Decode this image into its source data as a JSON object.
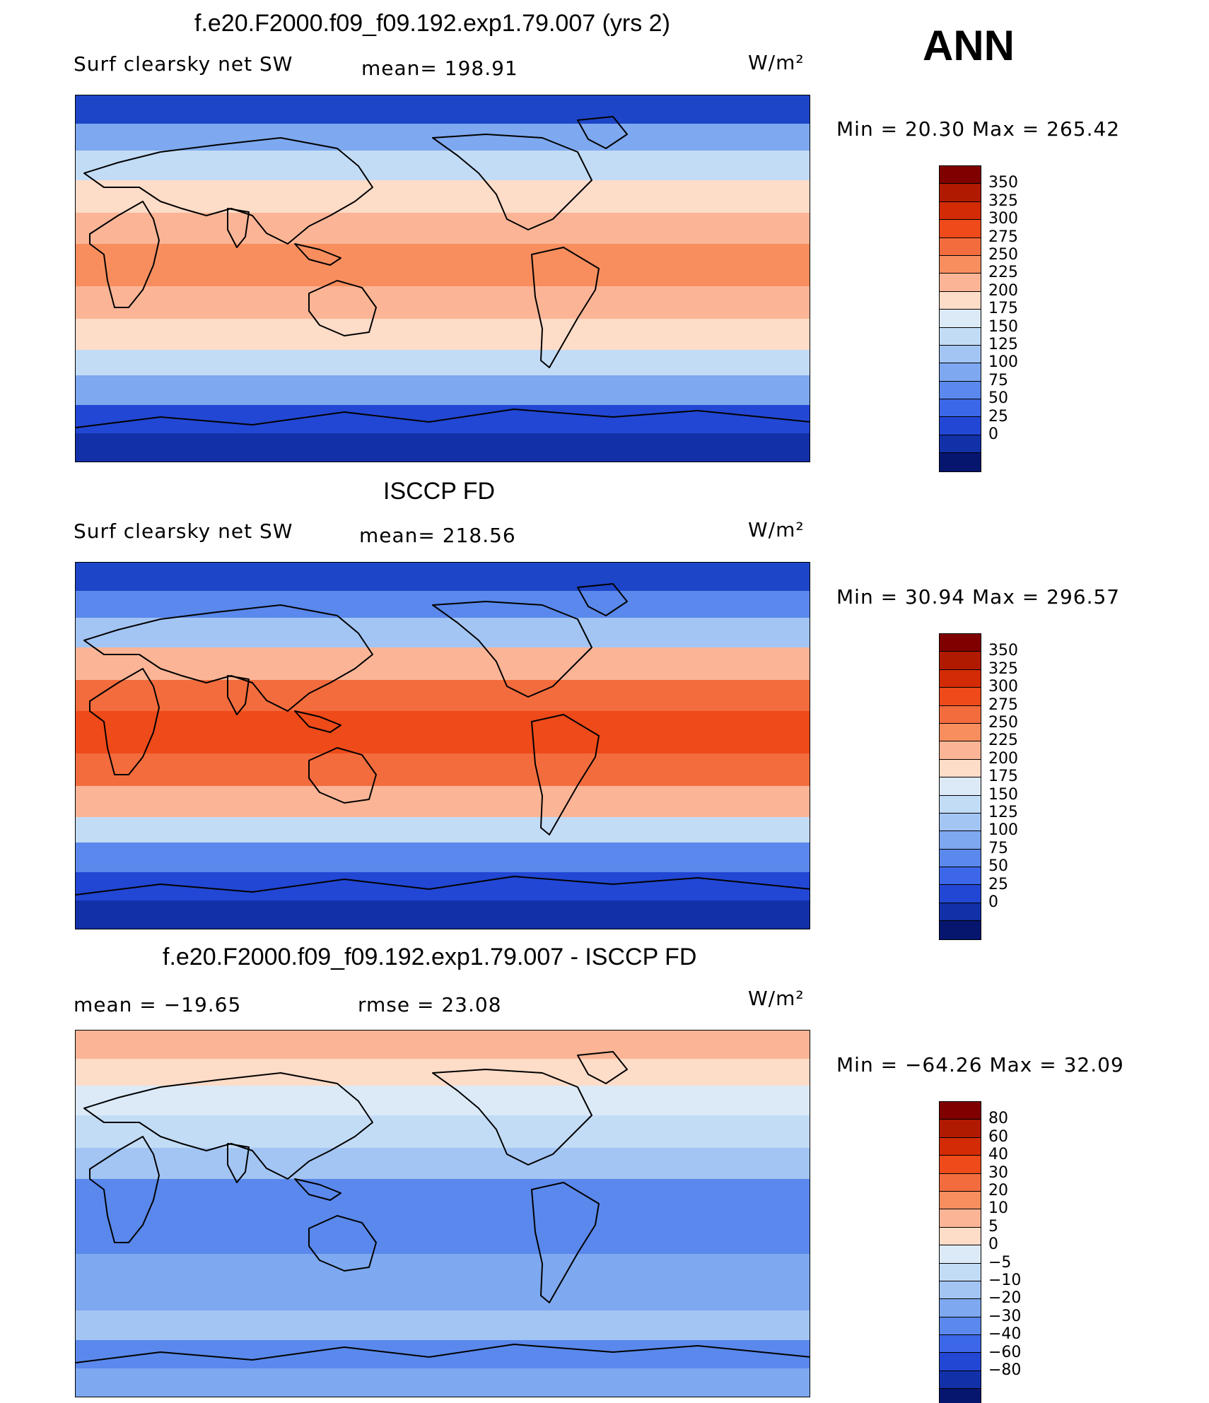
{
  "season": "ANN",
  "units_label": "W/m²",
  "panels": [
    {
      "title": "f.e20.F2000.f09_f09.192.exp1.79.007 (yrs 2)",
      "left_label": "Surf clearsky net SW",
      "stat_label": "mean=  198.91",
      "units": "W/m²",
      "minmax": "Min =   20.30 Max  =  265.42",
      "colorbar_ticks": [
        "350",
        "325",
        "300",
        "275",
        "250",
        "225",
        "200",
        "175",
        "150",
        "125",
        "100",
        "75",
        "50",
        "25",
        "0"
      ],
      "colorbar_colors": [
        "#800000",
        "#b01a00",
        "#d22b05",
        "#ee4a1a",
        "#f36c3d",
        "#f88e5e",
        "#fbb596",
        "#fddcc8",
        "#dceaf8",
        "#c3dcf6",
        "#a3c5f3",
        "#7ea8ef",
        "#5a88ec",
        "#3c67e8",
        "#2247d4",
        "#1230a8",
        "#06156e"
      ],
      "map_zones": [
        {
          "label": "polar_n",
          "color": "#1d45c8"
        },
        {
          "label": "subpolar_n",
          "color": "#7ea8ef"
        },
        {
          "label": "midlat_n",
          "color": "#c3dcf6"
        },
        {
          "label": "subtrop_n",
          "color": "#fddcc8"
        },
        {
          "label": "trop_n",
          "color": "#fbb596"
        },
        {
          "label": "tropics",
          "color": "#f88e5e"
        },
        {
          "label": "trop_s",
          "color": "#fbb596"
        },
        {
          "label": "subtrop_s",
          "color": "#fddcc8"
        },
        {
          "label": "midlat_s",
          "color": "#c3dcf6"
        },
        {
          "label": "subpolar_s",
          "color": "#7ea8ef"
        },
        {
          "label": "polar_s",
          "color": "#2247d4"
        },
        {
          "label": "antarctica",
          "color": "#1230a8"
        }
      ]
    },
    {
      "title": "ISCCP FD",
      "left_label": "Surf clearsky net SW",
      "stat_label": "mean=  218.56",
      "units": "W/m²",
      "minmax": "Min =   30.94 Max  =  296.57",
      "colorbar_ticks": [
        "350",
        "325",
        "300",
        "275",
        "250",
        "225",
        "200",
        "175",
        "150",
        "125",
        "100",
        "75",
        "50",
        "25",
        "0"
      ],
      "colorbar_colors": [
        "#800000",
        "#b01a00",
        "#d22b05",
        "#ee4a1a",
        "#f36c3d",
        "#f88e5e",
        "#fbb596",
        "#fddcc8",
        "#dceaf8",
        "#c3dcf6",
        "#a3c5f3",
        "#7ea8ef",
        "#5a88ec",
        "#3c67e8",
        "#2247d4",
        "#1230a8",
        "#06156e"
      ],
      "map_zones": [
        {
          "label": "polar_n",
          "color": "#1d45c8"
        },
        {
          "label": "subpolar_n",
          "color": "#5a88ec"
        },
        {
          "label": "midlat_n",
          "color": "#a3c5f3"
        },
        {
          "label": "subtrop_n",
          "color": "#fbb596"
        },
        {
          "label": "trop_n",
          "color": "#f36c3d"
        },
        {
          "label": "tropics",
          "color": "#ee4a1a"
        },
        {
          "label": "trop_s",
          "color": "#f36c3d"
        },
        {
          "label": "subtrop_s",
          "color": "#fbb596"
        },
        {
          "label": "midlat_s",
          "color": "#c3dcf6"
        },
        {
          "label": "subpolar_s",
          "color": "#5a88ec"
        },
        {
          "label": "polar_s",
          "color": "#2247d4"
        },
        {
          "label": "antarctica",
          "color": "#1230a8"
        }
      ]
    },
    {
      "title": "f.e20.F2000.f09_f09.192.exp1.79.007 - ISCCP FD",
      "left_label": "mean  =  −19.65",
      "stat_label": "rmse  =    23.08",
      "units": "W/m²",
      "minmax": "Min  = −64.26  Max  =   32.09",
      "colorbar_ticks": [
        "80",
        "60",
        "40",
        "30",
        "20",
        "10",
        "5",
        "0",
        "−5",
        "−10",
        "−20",
        "−30",
        "−40",
        "−60",
        "−80"
      ],
      "colorbar_colors": [
        "#800000",
        "#b01a00",
        "#d22b05",
        "#ee4a1a",
        "#f36c3d",
        "#f88e5e",
        "#fbb596",
        "#fddcc8",
        "#dceaf8",
        "#c3dcf6",
        "#a3c5f3",
        "#7ea8ef",
        "#5a88ec",
        "#3c67e8",
        "#2247d4",
        "#1230a8",
        "#06156e"
      ],
      "map_zones": [
        {
          "label": "polar_n",
          "color": "#fbb596"
        },
        {
          "label": "subpolar_n",
          "color": "#fddcc8"
        },
        {
          "label": "midlat_n",
          "color": "#dceaf8"
        },
        {
          "label": "subtrop_n",
          "color": "#c3dcf6"
        },
        {
          "label": "trop_n",
          "color": "#a3c5f3"
        },
        {
          "label": "tropics",
          "color": "#5a88ec"
        },
        {
          "label": "trop_s",
          "color": "#5a88ec"
        },
        {
          "label": "subtrop_s",
          "color": "#7ea8ef"
        },
        {
          "label": "midlat_s",
          "color": "#7ea8ef"
        },
        {
          "label": "subpolar_s",
          "color": "#a3c5f3"
        },
        {
          "label": "polar_s",
          "color": "#5a88ec"
        },
        {
          "label": "antarctica",
          "color": "#7ea8ef"
        }
      ]
    }
  ]
}
